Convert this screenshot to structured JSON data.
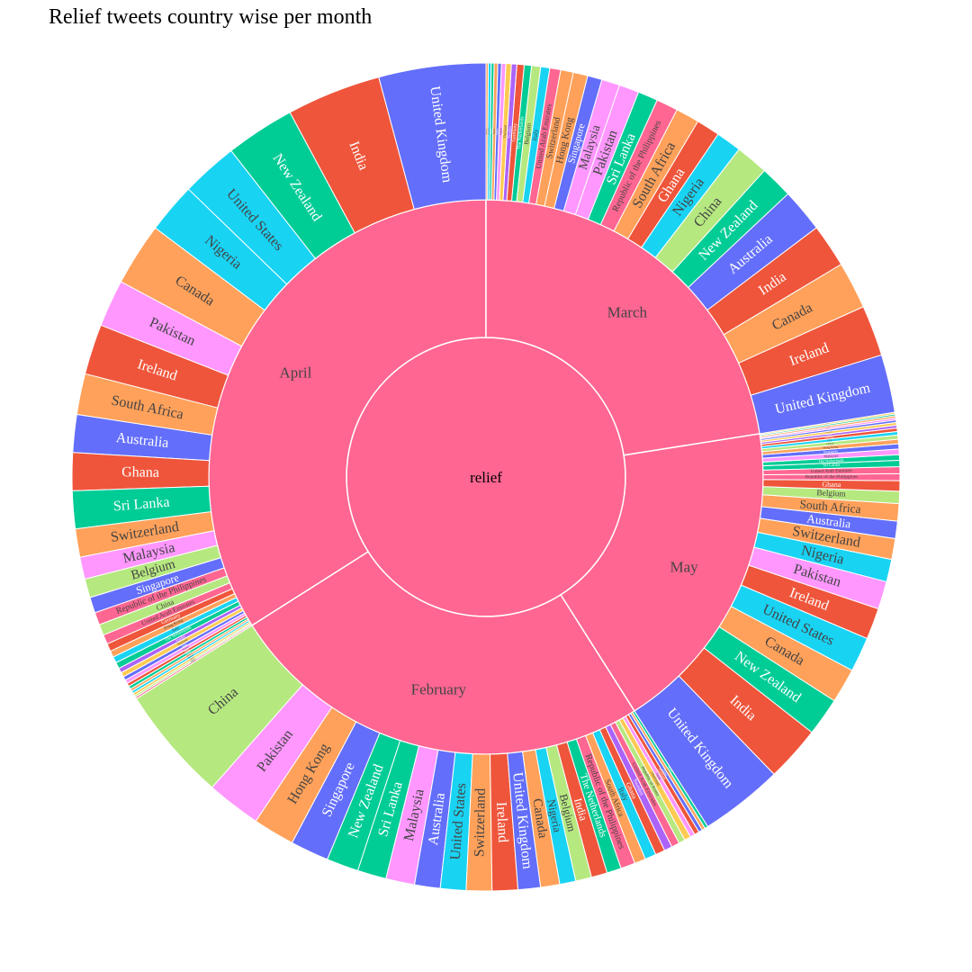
{
  "chart_data": {
    "type": "sunburst",
    "title": "Relief tweets country wise per month",
    "root": {
      "label": "relief",
      "value": 1000,
      "color": "#FF6692"
    },
    "palette": [
      "#636EFA",
      "#EF553B",
      "#00CC96",
      "#AB63FA",
      "#FFA15A",
      "#19D3F3",
      "#FF6692",
      "#B6E880",
      "#FF97FF",
      "#FECB52"
    ],
    "months": [
      {
        "label": "April",
        "value": 340,
        "color": "#FF6692",
        "countries": [
          {
            "label": "United Kingdom",
            "value": 34,
            "color": "#636EFA"
          },
          {
            "label": "India",
            "value": 30,
            "color": "#EF553B"
          },
          {
            "label": "New Zealand",
            "value": 22,
            "color": "#00CC96"
          },
          {
            "label": "United States",
            "value": 18,
            "color": "#19D3F3"
          },
          {
            "label": "Nigeria",
            "value": 16,
            "color": "#19D3F3"
          },
          {
            "label": "Canada",
            "value": 20,
            "color": "#FFA15A"
          },
          {
            "label": "Pakistan",
            "value": 15,
            "color": "#FF97FF"
          },
          {
            "label": "Ireland",
            "value": 16,
            "color": "#EF553B"
          },
          {
            "label": "South Africa",
            "value": 13,
            "color": "#FFA15A"
          },
          {
            "label": "Australia",
            "value": 12,
            "color": "#636EFA"
          },
          {
            "label": "Ghana",
            "value": 12,
            "color": "#EF553B"
          },
          {
            "label": "Sri Lanka",
            "value": 12,
            "color": "#00CC96"
          },
          {
            "label": "Switzerland",
            "value": 9,
            "color": "#FFA15A"
          },
          {
            "label": "Malaysia",
            "value": 7,
            "color": "#FF97FF"
          },
          {
            "label": "Belgium",
            "value": 6,
            "color": "#B6E880"
          },
          {
            "label": "Singapore",
            "value": 5,
            "color": "#636EFA"
          },
          {
            "label": "Republic of the Philippines",
            "value": 4,
            "color": "#FF6692"
          },
          {
            "label": "China",
            "value": 3.5,
            "color": "#B6E880"
          },
          {
            "label": "United Arab Emirates",
            "value": 3,
            "color": "#FF6692"
          },
          {
            "label": "Germany",
            "value": 2.5,
            "color": "#EF553B"
          },
          {
            "label": "Hong Kong",
            "value": 2,
            "color": "#FFA15A"
          },
          {
            "label": "Italy",
            "value": 2,
            "color": "#19D3F3"
          },
          {
            "label": "The Netherlands",
            "value": 2,
            "color": "#00CC96"
          },
          {
            "label": "Sweden",
            "value": 1.5,
            "color": "#AB63FA"
          },
          {
            "label": "Thailand",
            "value": 1.5,
            "color": "#FECB52"
          },
          {
            "label": "Spain",
            "value": 1.2,
            "color": "#636EFA"
          },
          {
            "label": "France",
            "value": 1.2,
            "color": "#FF97FF"
          },
          {
            "label": "Japan",
            "value": 1,
            "color": "#EF553B"
          },
          {
            "label": "Kenya",
            "value": 1,
            "color": "#00CC96"
          },
          {
            "label": "Norway",
            "value": 0.8,
            "color": "#FFA15A"
          },
          {
            "label": "Denmark",
            "value": 0.8,
            "color": "#19D3F3"
          },
          {
            "label": "Qatar",
            "value": 0.8,
            "color": "#FECB52"
          },
          {
            "label": "Austria",
            "value": 0.6,
            "color": "#B6E880"
          },
          {
            "label": "Finland",
            "value": 0.6,
            "color": "#FF6692"
          }
        ]
      },
      {
        "label": "February",
        "value": 250,
        "color": "#FF6692",
        "countries": [
          {
            "label": "China",
            "value": 36,
            "color": "#B6E880"
          },
          {
            "label": "Pakistan",
            "value": 17,
            "color": "#FF97FF"
          },
          {
            "label": "Hong Kong",
            "value": 13,
            "color": "#FFA15A"
          },
          {
            "label": "Singapore",
            "value": 12,
            "color": "#636EFA"
          },
          {
            "label": "New Zealand",
            "value": 10,
            "color": "#00CC96"
          },
          {
            "label": "Sri Lanka",
            "value": 9,
            "color": "#00CC96"
          },
          {
            "label": "Malaysia",
            "value": 9,
            "color": "#FF97FF"
          },
          {
            "label": "Australia",
            "value": 8,
            "color": "#636EFA"
          },
          {
            "label": "United States",
            "value": 8,
            "color": "#19D3F3"
          },
          {
            "label": "Switzerland",
            "value": 8,
            "color": "#FFA15A"
          },
          {
            "label": "Ireland",
            "value": 8,
            "color": "#EF553B"
          },
          {
            "label": "United Kingdom",
            "value": 7,
            "color": "#636EFA"
          },
          {
            "label": "Canada",
            "value": 6,
            "color": "#FFA15A"
          },
          {
            "label": "Nigeria",
            "value": 5,
            "color": "#19D3F3"
          },
          {
            "label": "Belgium",
            "value": 5,
            "color": "#B6E880"
          },
          {
            "label": "India",
            "value": 5,
            "color": "#EF553B"
          },
          {
            "label": "The Netherlands",
            "value": 4.5,
            "color": "#00CC96"
          },
          {
            "label": "Republic of the Philippines",
            "value": 4.5,
            "color": "#FF6692"
          },
          {
            "label": "South Africa",
            "value": 3.5,
            "color": "#FFA15A"
          },
          {
            "label": "Italy",
            "value": 3.5,
            "color": "#19D3F3"
          },
          {
            "label": "Ghana",
            "value": 3,
            "color": "#EF553B"
          },
          {
            "label": "Sweden",
            "value": 2.5,
            "color": "#AB63FA"
          },
          {
            "label": "United Arab Emirates",
            "value": 2.5,
            "color": "#FF6692"
          },
          {
            "label": "Republic of Korea",
            "value": 2,
            "color": "#B6E880"
          },
          {
            "label": "Thailand",
            "value": 2,
            "color": "#FECB52"
          },
          {
            "label": "Japan",
            "value": 1.5,
            "color": "#FF97FF"
          },
          {
            "label": "Germany",
            "value": 1.5,
            "color": "#EF553B"
          },
          {
            "label": "France",
            "value": 1.2,
            "color": "#636EFA"
          },
          {
            "label": "Spain",
            "value": 1,
            "color": "#FFA15A"
          },
          {
            "label": "Norway",
            "value": 1,
            "color": "#00CC96"
          }
        ]
      },
      {
        "label": "May",
        "value": 185,
        "color": "#FF6692",
        "countries": [
          {
            "label": "United Kingdom",
            "value": 24,
            "color": "#636EFA"
          },
          {
            "label": "India",
            "value": 16,
            "color": "#EF553B"
          },
          {
            "label": "New Zealand",
            "value": 11,
            "color": "#00CC96"
          },
          {
            "label": "Canada",
            "value": 10,
            "color": "#FFA15A"
          },
          {
            "label": "United States",
            "value": 10,
            "color": "#19D3F3"
          },
          {
            "label": "Ireland",
            "value": 9,
            "color": "#EF553B"
          },
          {
            "label": "Pakistan",
            "value": 8,
            "color": "#FF97FF"
          },
          {
            "label": "Nigeria",
            "value": 6.5,
            "color": "#19D3F3"
          },
          {
            "label": "Switzerland",
            "value": 6,
            "color": "#FFA15A"
          },
          {
            "label": "Australia",
            "value": 5,
            "color": "#636EFA"
          },
          {
            "label": "South Africa",
            "value": 5,
            "color": "#FFA15A"
          },
          {
            "label": "Belgium",
            "value": 3.5,
            "color": "#B6E880"
          },
          {
            "label": "Ghana",
            "value": 3,
            "color": "#EF553B"
          },
          {
            "label": "Republic of the Philippines",
            "value": 2,
            "color": "#FF6692"
          },
          {
            "label": "United Arab Emirates",
            "value": 2,
            "color": "#FF6692"
          },
          {
            "label": "Sri Lanka",
            "value": 1.8,
            "color": "#00CC96"
          },
          {
            "label": "The Netherlands",
            "value": 1.6,
            "color": "#00CC96"
          },
          {
            "label": "Malaysia",
            "value": 1.6,
            "color": "#FF97FF"
          },
          {
            "label": "Singapore",
            "value": 1.5,
            "color": "#636EFA"
          },
          {
            "label": "Hong Kong",
            "value": 1.3,
            "color": "#FFA15A"
          },
          {
            "label": "China",
            "value": 1.2,
            "color": "#B6E880"
          },
          {
            "label": "Italy",
            "value": 1,
            "color": "#19D3F3"
          },
          {
            "label": "Germany",
            "value": 1,
            "color": "#EF553B"
          },
          {
            "label": "Sweden",
            "value": 0.8,
            "color": "#AB63FA"
          },
          {
            "label": "Thailand",
            "value": 0.8,
            "color": "#FECB52"
          },
          {
            "label": "France",
            "value": 0.7,
            "color": "#636EFA"
          },
          {
            "label": "Japan",
            "value": 0.6,
            "color": "#FF97FF"
          },
          {
            "label": "Spain",
            "value": 0.6,
            "color": "#FFA15A"
          },
          {
            "label": "Kenya",
            "value": 0.5,
            "color": "#00CC96"
          },
          {
            "label": "Qatar",
            "value": 0.5,
            "color": "#FECB52"
          }
        ]
      },
      {
        "label": "March",
        "value": 225,
        "color": "#FF6692",
        "countries": [
          {
            "label": "United Kingdom",
            "value": 16,
            "color": "#636EFA"
          },
          {
            "label": "Ireland",
            "value": 14,
            "color": "#EF553B"
          },
          {
            "label": "Canada",
            "value": 13,
            "color": "#FFA15A"
          },
          {
            "label": "India",
            "value": 12,
            "color": "#EF553B"
          },
          {
            "label": "Australia",
            "value": 12,
            "color": "#636EFA"
          },
          {
            "label": "New Zealand",
            "value": 9,
            "color": "#00CC96"
          },
          {
            "label": "China",
            "value": 9,
            "color": "#B6E880"
          },
          {
            "label": "Nigeria",
            "value": 7,
            "color": "#19D3F3"
          },
          {
            "label": "Ghana",
            "value": 6.5,
            "color": "#EF553B"
          },
          {
            "label": "South Africa",
            "value": 6.5,
            "color": "#FFA15A"
          },
          {
            "label": "Republic of the Philippines",
            "value": 6,
            "color": "#FF6692"
          },
          {
            "label": "Sri Lanka",
            "value": 5.5,
            "color": "#00CC96"
          },
          {
            "label": "Pakistan",
            "value": 5.5,
            "color": "#FF97FF"
          },
          {
            "label": "Malaysia",
            "value": 5,
            "color": "#FF97FF"
          },
          {
            "label": "Singapore",
            "value": 4,
            "color": "#636EFA"
          },
          {
            "label": "Hong Kong",
            "value": 4,
            "color": "#FFA15A"
          },
          {
            "label": "Switzerland",
            "value": 3.5,
            "color": "#FFA15A"
          },
          {
            "label": "United Arab Emirates",
            "value": 3,
            "color": "#FF6692"
          },
          {
            "label": "Italy",
            "value": 2.5,
            "color": "#19D3F3"
          },
          {
            "label": "Belgium",
            "value": 2.5,
            "color": "#B6E880"
          },
          {
            "label": "The Netherlands",
            "value": 2,
            "color": "#00CC96"
          },
          {
            "label": "Germany",
            "value": 2,
            "color": "#EF553B"
          },
          {
            "label": "Sweden",
            "value": 1.5,
            "color": "#AB63FA"
          },
          {
            "label": "Thailand",
            "value": 1.5,
            "color": "#FECB52"
          },
          {
            "label": "Japan",
            "value": 1.2,
            "color": "#FF97FF"
          },
          {
            "label": "France",
            "value": 1,
            "color": "#636EFA"
          },
          {
            "label": "Spain",
            "value": 1,
            "color": "#FFA15A"
          },
          {
            "label": "Kenya",
            "value": 0.8,
            "color": "#00CC96"
          },
          {
            "label": "Denmark",
            "value": 0.8,
            "color": "#19D3F3"
          },
          {
            "label": "Norway",
            "value": 0.6,
            "color": "#FFA15A"
          }
        ]
      }
    ],
    "grid": false,
    "legend": "none"
  }
}
